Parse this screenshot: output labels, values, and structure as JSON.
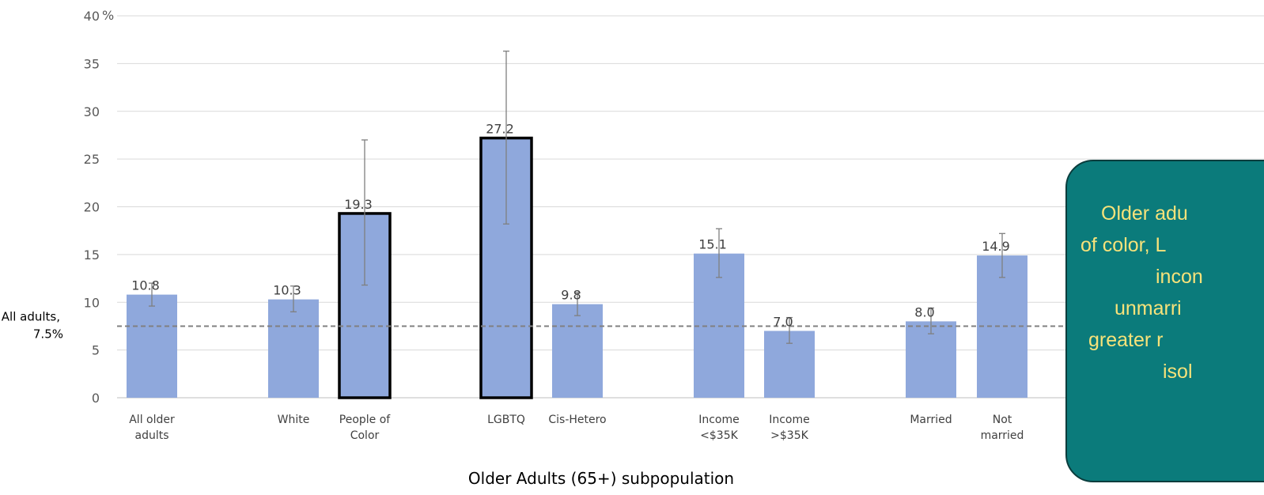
{
  "chart_data": {
    "type": "bar",
    "xlabel": "Older Adults (65+) subpopulation",
    "ylabel": "",
    "ylim": [
      0,
      40
    ],
    "y_ticks": [
      "0",
      "5",
      "10",
      "15",
      "20",
      "25",
      "30",
      "35",
      "40"
    ],
    "y_tick_unit": "%",
    "grid": true,
    "categories": [
      [
        "All older",
        "adults"
      ],
      [
        "White"
      ],
      [
        "People of",
        "Color"
      ],
      [
        "LGBTQ"
      ],
      [
        "Cis-Hetero"
      ],
      [
        "Income",
        "<$35K"
      ],
      [
        "Income",
        ">$35K"
      ],
      [
        "Married"
      ],
      [
        "Not",
        "married"
      ]
    ],
    "values": [
      10.8,
      10.3,
      19.3,
      27.2,
      9.8,
      15.1,
      7.0,
      8.0,
      14.9
    ],
    "value_labels": [
      "10.8",
      "10.3",
      "19.3",
      "27.2",
      "9.8",
      "15.1",
      "7.0",
      "8.0",
      "14.9"
    ],
    "error_low": [
      9.6,
      9.0,
      11.8,
      18.2,
      8.6,
      12.6,
      5.7,
      6.7,
      12.6
    ],
    "error_high": [
      12.0,
      11.7,
      27.0,
      36.3,
      11.0,
      17.7,
      8.4,
      9.4,
      17.2
    ],
    "highlighted": [
      false,
      false,
      true,
      true,
      false,
      false,
      false,
      false,
      false
    ],
    "bar_color": "#8fa8dc",
    "highlight_border_color": "#000000",
    "reference_line": {
      "value": 7.5,
      "label_lines": [
        "All adults,",
        "7.5%"
      ],
      "color": "#808080"
    },
    "callout": {
      "lines": [
        "Older adu",
        "of color, L",
        "incon",
        "unmarri",
        "greater r",
        "isol"
      ],
      "background": "#0b7b7b",
      "border": "#0a3d3d",
      "text_color": "#f7e27a"
    }
  }
}
